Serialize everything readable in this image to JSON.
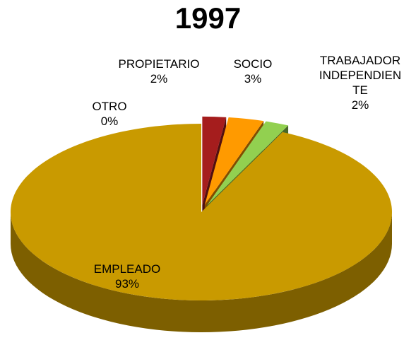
{
  "chart_data": {
    "type": "pie",
    "title": "1997",
    "categories": [
      "OTRO",
      "PROPIETARIO",
      "SOCIO",
      "TRABAJADOR INDEPENDIENTE",
      "EMPLEADO"
    ],
    "values": [
      0,
      2,
      3,
      2,
      93
    ],
    "value_labels": [
      "0%",
      "2%",
      "3%",
      "2%",
      "93%"
    ],
    "colors": [
      "#ffffff",
      "#a51d1d",
      "#ff9a00",
      "#92d050",
      "#c99a00"
    ]
  }
}
